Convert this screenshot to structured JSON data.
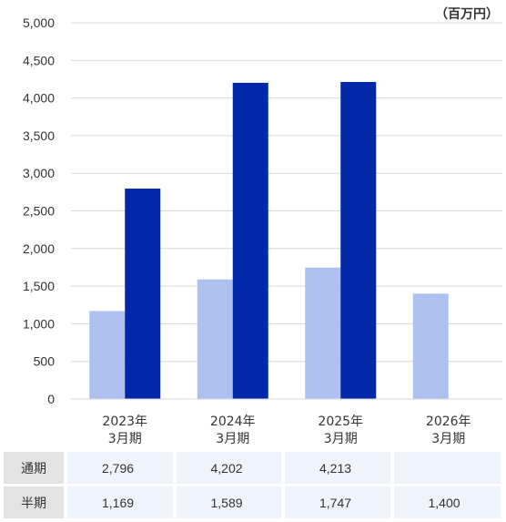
{
  "chart_data": {
    "type": "bar",
    "unit_label": "（百万円）",
    "categories": [
      {
        "year": "2023年",
        "period": "3月期"
      },
      {
        "year": "2024年",
        "period": "3月期"
      },
      {
        "year": "2025年",
        "period": "3月期"
      },
      {
        "year": "2026年",
        "period": "3月期"
      }
    ],
    "series": [
      {
        "name": "半期",
        "color": "#adc0ef",
        "values": [
          1169,
          1589,
          1747,
          1400
        ]
      },
      {
        "name": "通期",
        "color": "#0028a8",
        "values": [
          2796,
          4202,
          4213,
          null
        ]
      }
    ],
    "ylim": [
      0,
      5000
    ],
    "yticks": [
      "0",
      "500",
      "1,000",
      "1,500",
      "2,000",
      "2,500",
      "3,000",
      "3,500",
      "4,000",
      "4,500",
      "5,000"
    ],
    "grid": true
  },
  "table": {
    "rows": [
      {
        "label": "通期",
        "cells": [
          "2,796",
          "4,202",
          "4,213",
          ""
        ]
      },
      {
        "label": "半期",
        "cells": [
          "1,169",
          "1,589",
          "1,747",
          "1,400"
        ]
      }
    ]
  }
}
